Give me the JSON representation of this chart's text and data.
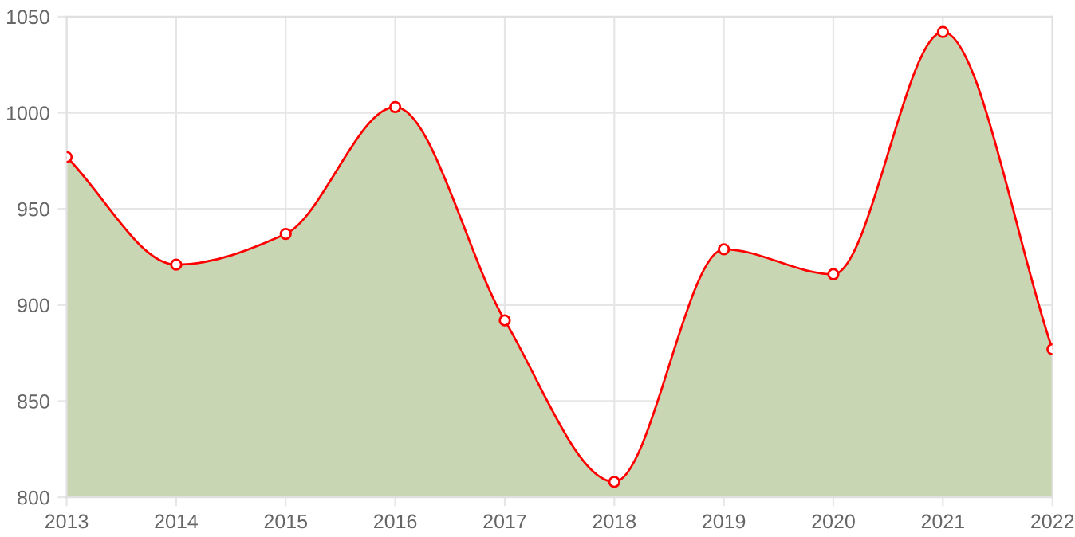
{
  "chart_data": {
    "type": "area",
    "x": [
      2013,
      2014,
      2015,
      2016,
      2017,
      2018,
      2019,
      2020,
      2021,
      2022
    ],
    "series": [
      {
        "color": "#ff0000",
        "values": [
          977,
          921,
          937,
          1003,
          892,
          808,
          929,
          916,
          1042,
          877
        ]
      }
    ],
    "xlim": [
      2013,
      2022
    ],
    "xticks": [
      2013,
      2014,
      2015,
      2016,
      2017,
      2018,
      2019,
      2020,
      2021,
      2022
    ],
    "ylim": [
      800,
      1050
    ],
    "yticks": [
      800,
      850,
      900,
      950,
      1000,
      1050
    ],
    "grid": true,
    "marker": "circle",
    "line_style": "solid"
  }
}
